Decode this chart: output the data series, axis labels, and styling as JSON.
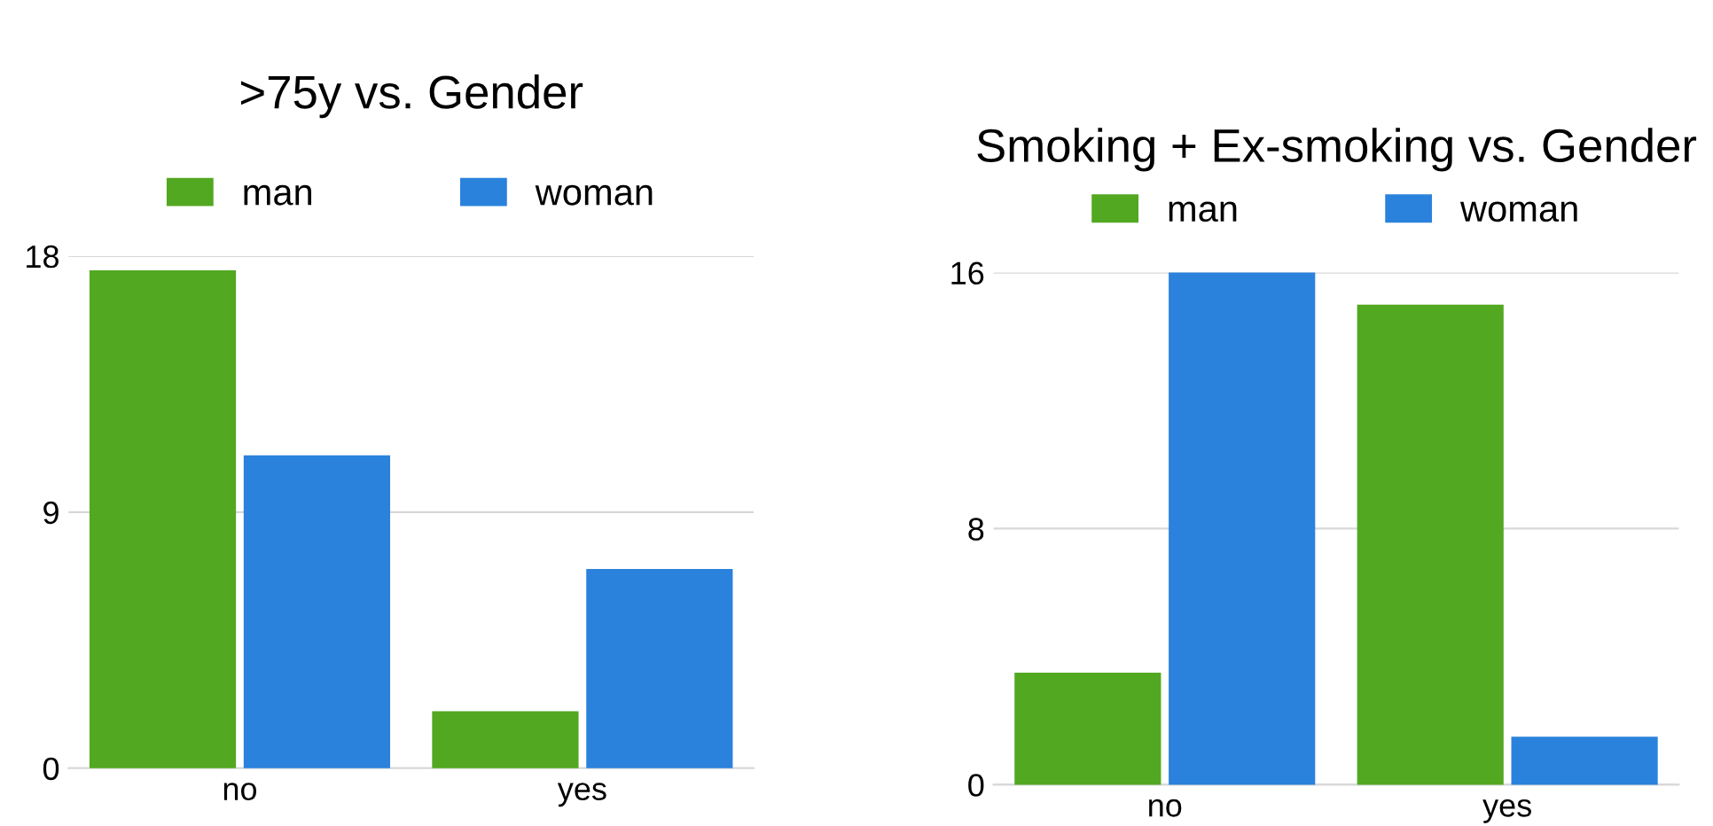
{
  "chart_data": [
    {
      "type": "bar",
      "title": ">75y vs. Gender",
      "categories": [
        "no",
        "yes"
      ],
      "series": [
        {
          "name": "man",
          "color": "#52a820",
          "values": [
            17.5,
            2
          ]
        },
        {
          "name": "woman",
          "color": "#2a82dc",
          "values": [
            11,
            7
          ]
        }
      ],
      "ylim": [
        0,
        18
      ],
      "yticks": [
        0,
        9,
        18
      ],
      "grid": "y",
      "legend": "top"
    },
    {
      "type": "bar",
      "title": "Smoking + Ex-smoking vs. Gender",
      "categories": [
        "no",
        "yes"
      ],
      "series": [
        {
          "name": "man",
          "color": "#52a820",
          "values": [
            3.5,
            15
          ]
        },
        {
          "name": "woman",
          "color": "#2a82dc",
          "values": [
            16,
            1.5
          ]
        }
      ],
      "ylim": [
        0,
        16
      ],
      "yticks": [
        0,
        8,
        16
      ],
      "grid": "y",
      "legend": "top"
    }
  ]
}
